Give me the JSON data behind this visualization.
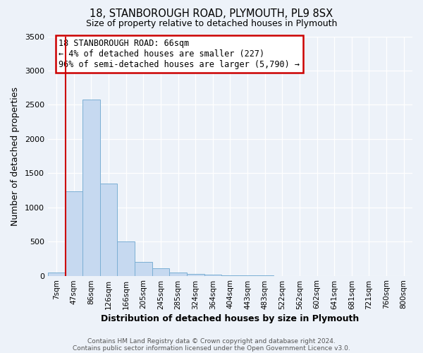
{
  "title": "18, STANBOROUGH ROAD, PLYMOUTH, PL9 8SX",
  "subtitle": "Size of property relative to detached houses in Plymouth",
  "xlabel": "Distribution of detached houses by size in Plymouth",
  "ylabel": "Number of detached properties",
  "bar_labels": [
    "7sqm",
    "47sqm",
    "86sqm",
    "126sqm",
    "166sqm",
    "205sqm",
    "245sqm",
    "285sqm",
    "324sqm",
    "364sqm",
    "404sqm",
    "443sqm",
    "483sqm",
    "522sqm",
    "562sqm",
    "602sqm",
    "641sqm",
    "681sqm",
    "721sqm",
    "760sqm",
    "800sqm"
  ],
  "bar_values": [
    50,
    1230,
    2580,
    1350,
    500,
    200,
    105,
    50,
    30,
    15,
    8,
    5,
    3,
    0,
    0,
    0,
    0,
    0,
    0,
    0,
    0
  ],
  "bar_color": "#c6d9f0",
  "bar_edgecolor": "#7bafd4",
  "vline_color": "#cc0000",
  "ylim": [
    0,
    3500
  ],
  "yticks": [
    0,
    500,
    1000,
    1500,
    2000,
    2500,
    3000,
    3500
  ],
  "annotation_text": "18 STANBOROUGH ROAD: 66sqm\n← 4% of detached houses are smaller (227)\n96% of semi-detached houses are larger (5,790) →",
  "annotation_box_edgecolor": "#cc0000",
  "footer1": "Contains HM Land Registry data © Crown copyright and database right 2024.",
  "footer2": "Contains public sector information licensed under the Open Government Licence v3.0.",
  "background_color": "#edf2f9",
  "grid_color": "#ffffff",
  "figsize": [
    6.0,
    5.0
  ],
  "dpi": 100
}
